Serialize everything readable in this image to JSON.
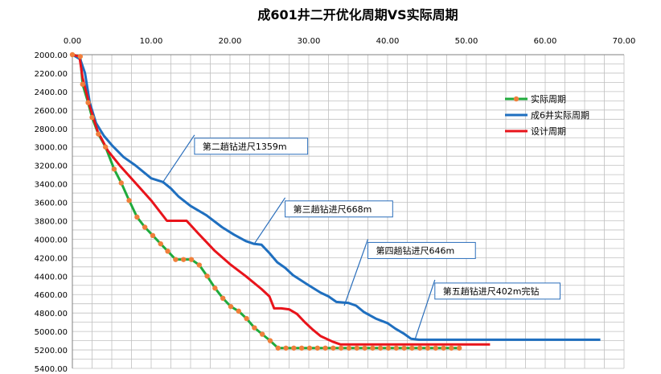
{
  "chart_data": {
    "type": "line",
    "title": "成601井二开优化周期VS实际周期",
    "xlabel": "",
    "ylabel": "",
    "x_axis_position": "top",
    "y_axis_reversed": true,
    "xlim": [
      0,
      70
    ],
    "ylim": [
      2000,
      5400
    ],
    "x_ticks": [
      "0.00",
      "10.00",
      "20.00",
      "30.00",
      "40.00",
      "50.00",
      "60.00",
      "70.00"
    ],
    "y_ticks": [
      "2000.00",
      "2200.00",
      "2400.00",
      "2600.00",
      "2800.00",
      "3000.00",
      "3200.00",
      "3400.00",
      "3600.00",
      "3800.00",
      "4000.00",
      "4200.00",
      "4400.00",
      "4600.00",
      "4800.00",
      "5000.00",
      "5200.00",
      "5400.00"
    ],
    "grid": true,
    "legend_position": "right",
    "series": [
      {
        "name": "实际周期",
        "color": "#1faa3c",
        "marker_color": "#f07f3c",
        "markers": true,
        "points": [
          [
            0,
            2000
          ],
          [
            1,
            2020
          ],
          [
            1.3,
            2320
          ],
          [
            2,
            2520
          ],
          [
            2.5,
            2680
          ],
          [
            3.3,
            2860
          ],
          [
            4.2,
            3000
          ],
          [
            5.3,
            3240
          ],
          [
            6.2,
            3390
          ],
          [
            7.2,
            3580
          ],
          [
            8.2,
            3760
          ],
          [
            9.2,
            3870
          ],
          [
            10.2,
            3960
          ],
          [
            11.2,
            4050
          ],
          [
            12.1,
            4130
          ],
          [
            13.1,
            4220
          ],
          [
            14.1,
            4220
          ],
          [
            15.1,
            4220
          ],
          [
            16.1,
            4280
          ],
          [
            17.1,
            4400
          ],
          [
            18.1,
            4530
          ],
          [
            19.1,
            4640
          ],
          [
            20.1,
            4730
          ],
          [
            21.1,
            4780
          ],
          [
            22.1,
            4860
          ],
          [
            23.1,
            4960
          ],
          [
            24.1,
            5030
          ],
          [
            25.1,
            5100
          ],
          [
            26.1,
            5180
          ],
          [
            27.1,
            5180
          ],
          [
            28.1,
            5180
          ],
          [
            29.1,
            5180
          ],
          [
            30.1,
            5180
          ],
          [
            31.1,
            5180
          ],
          [
            32.1,
            5180
          ],
          [
            33.1,
            5180
          ],
          [
            34.1,
            5180
          ],
          [
            35.1,
            5180
          ],
          [
            36.1,
            5180
          ],
          [
            37.1,
            5180
          ],
          [
            38.1,
            5180
          ],
          [
            39.1,
            5180
          ],
          [
            40.1,
            5180
          ],
          [
            41.1,
            5180
          ],
          [
            42.1,
            5180
          ],
          [
            43.1,
            5180
          ],
          [
            44.1,
            5180
          ],
          [
            45.1,
            5180
          ],
          [
            46.1,
            5180
          ],
          [
            47.1,
            5180
          ],
          [
            48.1,
            5180
          ],
          [
            49.1,
            5180
          ]
        ]
      },
      {
        "name": "成6井实际周期",
        "color": "#1f6fbf",
        "markers": false,
        "points": [
          [
            0,
            2000
          ],
          [
            1,
            2050
          ],
          [
            1.6,
            2200
          ],
          [
            2.2,
            2520
          ],
          [
            3,
            2740
          ],
          [
            4,
            2880
          ],
          [
            5,
            2980
          ],
          [
            6.5,
            3110
          ],
          [
            8,
            3200
          ],
          [
            10,
            3340
          ],
          [
            11.5,
            3380
          ],
          [
            12.5,
            3450
          ],
          [
            13.5,
            3540
          ],
          [
            15,
            3640
          ],
          [
            17,
            3740
          ],
          [
            19,
            3870
          ],
          [
            20.5,
            3950
          ],
          [
            22,
            4020
          ],
          [
            23,
            4050
          ],
          [
            24,
            4060
          ],
          [
            25,
            4150
          ],
          [
            26,
            4250
          ],
          [
            27,
            4310
          ],
          [
            28,
            4390
          ],
          [
            30,
            4500
          ],
          [
            31.5,
            4580
          ],
          [
            32.5,
            4620
          ],
          [
            33.5,
            4680
          ],
          [
            35,
            4690
          ],
          [
            36,
            4720
          ],
          [
            37,
            4790
          ],
          [
            38.5,
            4860
          ],
          [
            40,
            4910
          ],
          [
            41,
            4970
          ],
          [
            42,
            5020
          ],
          [
            43,
            5080
          ],
          [
            44,
            5090
          ],
          [
            55,
            5090
          ],
          [
            67,
            5090
          ]
        ]
      },
      {
        "name": "设计周期",
        "color": "#e8141b",
        "markers": false,
        "points": [
          [
            0,
            2000
          ],
          [
            0.9,
            2020
          ],
          [
            1.3,
            2250
          ],
          [
            2.2,
            2560
          ],
          [
            3.2,
            2830
          ],
          [
            4.5,
            3040
          ],
          [
            6,
            3200
          ],
          [
            8,
            3390
          ],
          [
            10,
            3580
          ],
          [
            12,
            3800
          ],
          [
            14.5,
            3800
          ],
          [
            16,
            3940
          ],
          [
            18,
            4120
          ],
          [
            20,
            4270
          ],
          [
            22,
            4400
          ],
          [
            24,
            4540
          ],
          [
            25,
            4620
          ],
          [
            25.6,
            4750
          ],
          [
            26.5,
            4750
          ],
          [
            27.5,
            4760
          ],
          [
            28.5,
            4810
          ],
          [
            29.5,
            4900
          ],
          [
            30.5,
            4980
          ],
          [
            31.5,
            5050
          ],
          [
            33,
            5110
          ],
          [
            34,
            5140
          ],
          [
            40,
            5140
          ],
          [
            53,
            5140
          ]
        ]
      }
    ],
    "annotations": [
      {
        "text": "第二趟钻进尺1359m",
        "point": [
          11.5,
          3380
        ],
        "label_anchor": [
          15.5,
          2870
        ]
      },
      {
        "text": "第三趟钻进尺668m",
        "point": [
          23,
          4060
        ],
        "label_anchor": [
          27,
          3550
        ]
      },
      {
        "text": "第四趟钻进尺646m",
        "point": [
          34.5,
          4720
        ],
        "label_anchor": [
          37.5,
          4000
        ]
      },
      {
        "text": "第五趟钻进尺402m完钻",
        "point": [
          43.5,
          5080
        ],
        "label_anchor": [
          46,
          4440
        ]
      }
    ]
  }
}
